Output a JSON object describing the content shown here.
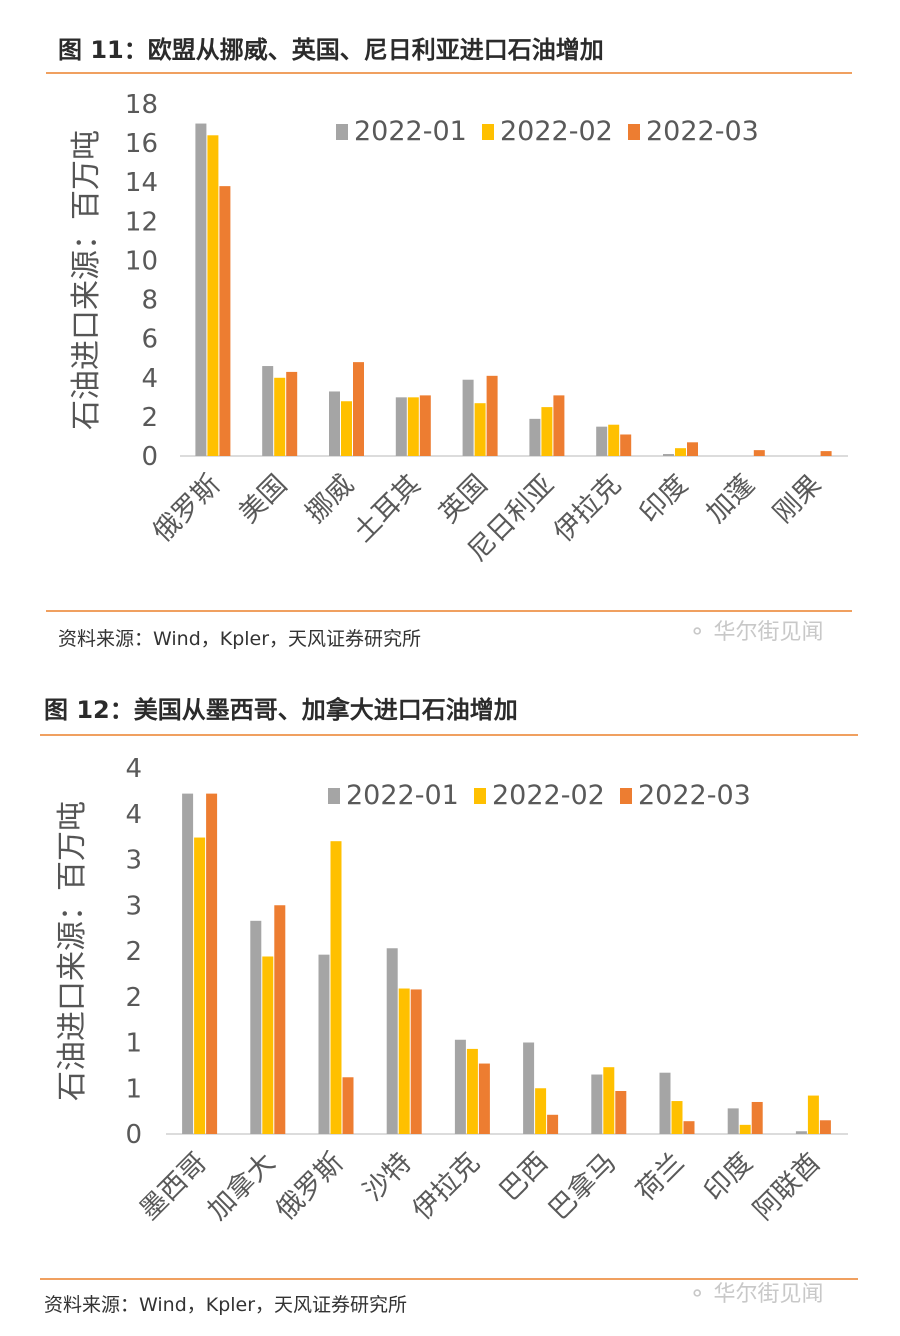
{
  "figures": [
    {
      "title": "图 11：欧盟从挪威、英国、尼日利亚进口石油增加",
      "source": "资料来源：Wind，Kpler，天风证券研究所",
      "watermark": "华尔街见闻"
    },
    {
      "title": "图 12：美国从墨西哥、加拿大进口石油增加",
      "source": "资料来源：Wind，Kpler，天风证券研究所",
      "watermark": "华尔街见闻"
    }
  ],
  "colors": {
    "series1": "#a5a5a5",
    "series2": "#ffc000",
    "series3": "#ed7d31",
    "rule": "#f0a060"
  },
  "chart_data": [
    {
      "type": "bar",
      "ylabel": "石油进口来源：百万吨",
      "ylim": [
        0,
        18
      ],
      "yticks": [
        0,
        2,
        4,
        6,
        8,
        10,
        12,
        14,
        16,
        18
      ],
      "ytick_labels": [
        "0",
        "2",
        "4",
        "6",
        "8",
        "10",
        "12",
        "14",
        "16",
        "18"
      ],
      "categories": [
        "俄罗斯",
        "美国",
        "挪威",
        "土耳其",
        "英国",
        "尼日利亚",
        "伊拉克",
        "印度",
        "加蓬",
        "刚果"
      ],
      "series": [
        {
          "name": "2022-01",
          "values": [
            17.0,
            4.6,
            3.3,
            3.0,
            3.9,
            1.9,
            1.5,
            0.1,
            0.0,
            0.0
          ]
        },
        {
          "name": "2022-02",
          "values": [
            16.4,
            4.0,
            2.8,
            3.0,
            2.7,
            2.5,
            1.6,
            0.4,
            0.0,
            0.0
          ]
        },
        {
          "name": "2022-03",
          "values": [
            13.8,
            4.3,
            4.8,
            3.1,
            4.1,
            3.1,
            1.1,
            0.7,
            0.3,
            0.25
          ]
        }
      ],
      "legend": "top-right"
    },
    {
      "type": "bar",
      "ylabel": "石油进口来源：百万吨",
      "ylim": [
        0,
        4
      ],
      "yticks": [
        0,
        0.5,
        1,
        1.5,
        2,
        2.5,
        3,
        3.5,
        4
      ],
      "ytick_labels": [
        "0",
        "1",
        "1",
        "2",
        "2",
        "3",
        "3",
        "4",
        "4"
      ],
      "categories": [
        "墨西哥",
        "加拿大",
        "俄罗斯",
        "沙特",
        "伊拉克",
        "巴西",
        "巴拿马",
        "荷兰",
        "印度",
        "阿联酋"
      ],
      "series": [
        {
          "name": "2022-01",
          "values": [
            3.72,
            2.33,
            1.96,
            2.03,
            1.03,
            1.0,
            0.65,
            0.67,
            0.28,
            0.03
          ]
        },
        {
          "name": "2022-02",
          "values": [
            3.24,
            1.94,
            3.2,
            1.59,
            0.93,
            0.5,
            0.73,
            0.36,
            0.1,
            0.42
          ]
        },
        {
          "name": "2022-03",
          "values": [
            3.72,
            2.5,
            0.62,
            1.58,
            0.77,
            0.21,
            0.47,
            0.14,
            0.35,
            0.15
          ]
        }
      ],
      "legend": "top-right"
    }
  ]
}
